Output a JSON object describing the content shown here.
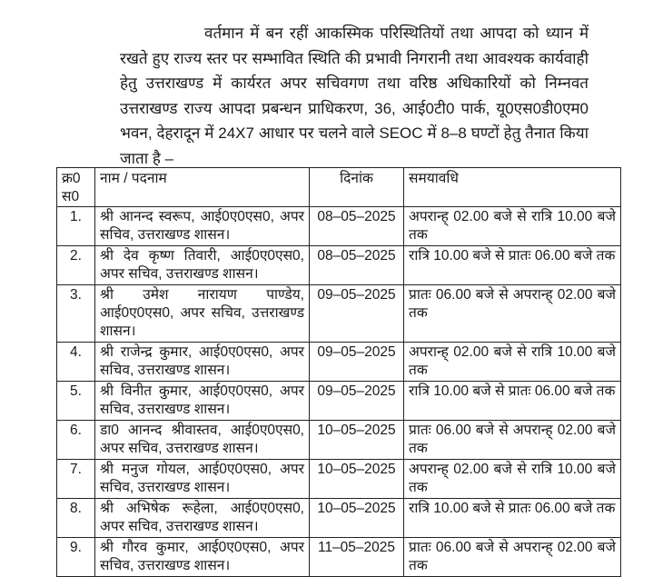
{
  "paragraph": "वर्तमान में बन रहीं आकस्मिक परिस्थितियों तथा आपदा को ध्यान में रखते हुए राज्य स्तर पर सम्भावित स्थिति की प्रभावी निगरानी तथा आवश्यक कार्यवाही हेतु उत्तराखण्ड में कार्यरत अपर सचिवगण तथा वरिष्ठ अधिकारियों को निम्नवत उत्तराखण्ड राज्य आपदा प्रबन्धन प्राधिकरण, 36, आई0टी0 पार्क, यू0एस0डी0एम0 भवन, देहरादून में 24X7 आधार पर चलने वाले SEOC में 8–8 घण्टों हेतु तैनात किया जाता है –",
  "table": {
    "headers": {
      "serial": "क्र0 स0",
      "name": "नाम / पदनाम",
      "date": "दिनांक",
      "time": "समयावधि"
    },
    "rows": [
      {
        "serial": "1.",
        "name": "श्री आनन्द स्वरूप, आई0ए0एस0, अपर सचिव, उत्तराखण्ड शासन।",
        "date": "08–05–2025",
        "time": "अपरान्ह् 02.00 बजे से रात्रि 10.00 बजे तक"
      },
      {
        "serial": "2.",
        "name": "श्री देव कृष्ण तिवारी, आई0ए0एस0, अपर सचिव, उत्तराखण्ड शासन।",
        "date": "08–05–2025",
        "time": "रात्रि 10.00 बजे से प्रातः 06.00 बजे तक"
      },
      {
        "serial": "3.",
        "name": "श्री उमेश नारायण पाण्डेय, आई0ए0एस0, अपर सचिव, उत्तराखण्ड शासन।",
        "date": "09–05–2025",
        "time": "प्रातः 06.00 बजे से अपरान्ह् 02.00 बजे तक"
      },
      {
        "serial": "4.",
        "name": "श्री राजेन्द्र कुमार, आई0ए0एस0, अपर सचिव, उत्तराखण्ड शासन।",
        "date": "09–05–2025",
        "time": "अपरान्ह् 02.00 बजे से रात्रि 10.00 बजे तक"
      },
      {
        "serial": "5.",
        "name": "श्री विनीत कुमार, आई0ए0एस0, अपर सचिव, उत्तराखण्ड शासन।",
        "date": "09–05–2025",
        "time": "रात्रि 10.00 बजे से प्रातः 06.00 बजे तक"
      },
      {
        "serial": "6.",
        "name": "डा0 आनन्द श्रीवास्तव, आई0ए0एस0, अपर सचिव, उत्तराखण्ड शासन।",
        "date": "10–05–2025",
        "time": "प्रातः 06.00 बजे से अपरान्ह् 02.00 बजे तक"
      },
      {
        "serial": "7.",
        "name": "श्री मनुज गोयल, आई0ए0एस0, अपर सचिव, उत्तराखण्ड शासन।",
        "date": "10–05–2025",
        "time": "अपरान्ह् 02.00 बजे से रात्रि 10.00 बजे तक"
      },
      {
        "serial": "8.",
        "name": "श्री अभिषेक रूहेला, आई0ए0एस0, अपर सचिव, उत्तराखण्ड शासन।",
        "date": "10–05–2025",
        "time": "रात्रि 10.00 बजे से प्रातः 06.00 बजे तक"
      },
      {
        "serial": "9.",
        "name": "श्री गौरव कुमार, आई0ए0एस0, अपर सचिव, उत्तराखण्ड शासन।",
        "date": "11–05–2025",
        "time": "प्रातः 06.00 बजे से अपरान्ह् 02.00 बजे तक"
      }
    ]
  }
}
